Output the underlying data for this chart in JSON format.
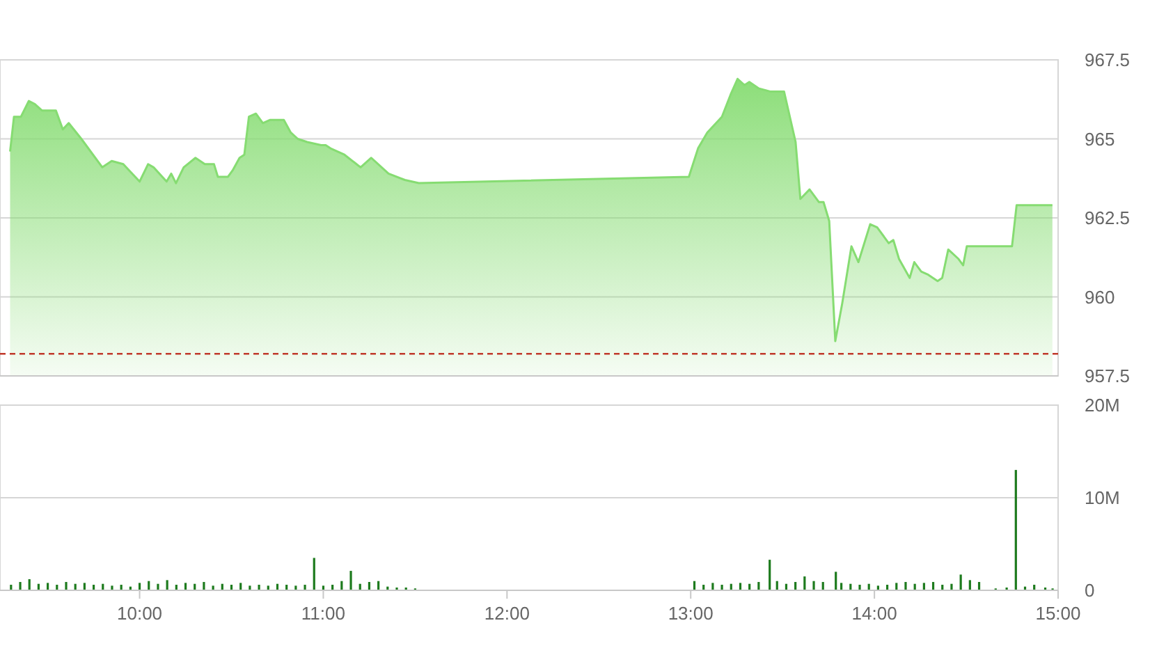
{
  "chart_data": [
    {
      "type": "area",
      "tick_labels": "y",
      "grid": "y",
      "color": "#86dc72",
      "xlim": [
        9.24,
        15.0
      ],
      "ylim": [
        957.5,
        967.5
      ],
      "yticks": [
        957.5,
        960,
        962.5,
        965,
        967.5
      ],
      "x": [
        9.295,
        9.316,
        9.354,
        9.397,
        9.43,
        9.468,
        9.544,
        9.582,
        9.614,
        9.683,
        9.797,
        9.848,
        9.911,
        10.0,
        10.046,
        10.076,
        10.147,
        10.172,
        10.198,
        10.24,
        10.304,
        10.355,
        10.405,
        10.426,
        10.481,
        10.506,
        10.544,
        10.57,
        10.595,
        10.633,
        10.671,
        10.709,
        10.785,
        10.823,
        10.861,
        10.912,
        10.988,
        11.013,
        11.039,
        11.115,
        11.203,
        11.261,
        11.355,
        11.444,
        11.52,
        12.99,
        13.04,
        13.09,
        13.17,
        13.217,
        13.255,
        13.293,
        13.319,
        13.369,
        13.432,
        13.508,
        13.571,
        13.597,
        13.647,
        13.698,
        13.723,
        13.754,
        13.787,
        13.825,
        13.875,
        13.913,
        13.977,
        14.015,
        14.078,
        14.103,
        14.134,
        14.192,
        14.217,
        14.255,
        14.293,
        14.344,
        14.369,
        14.402,
        14.458,
        14.483,
        14.503,
        14.749,
        14.774,
        14.969
      ],
      "values": [
        964.6,
        965.7,
        965.7,
        966.2,
        966.1,
        965.9,
        965.9,
        965.3,
        965.5,
        965.0,
        964.1,
        964.3,
        964.2,
        963.65,
        964.2,
        964.1,
        963.65,
        963.9,
        963.6,
        964.1,
        964.4,
        964.2,
        964.2,
        963.8,
        963.8,
        964.0,
        964.4,
        964.5,
        965.7,
        965.8,
        965.5,
        965.6,
        965.6,
        965.2,
        965.0,
        964.9,
        964.8,
        964.8,
        964.7,
        964.5,
        964.1,
        964.4,
        963.9,
        963.7,
        963.6,
        963.8,
        964.7,
        965.2,
        965.7,
        966.4,
        966.9,
        966.7,
        966.8,
        966.6,
        966.5,
        966.5,
        964.9,
        963.1,
        963.4,
        963.0,
        963.0,
        962.4,
        958.6,
        959.8,
        961.6,
        961.1,
        962.3,
        962.2,
        961.7,
        961.8,
        961.2,
        960.6,
        961.1,
        960.8,
        960.7,
        960.5,
        960.6,
        961.5,
        961.2,
        961.0,
        961.6,
        961.6,
        962.9,
        962.9
      ],
      "ref_lines": [
        {
          "axis": "y",
          "value": 958.2,
          "color": "#c0392b",
          "line_style": "dashed"
        }
      ]
    },
    {
      "type": "bar",
      "grid": "y",
      "color": "#1e7b1e",
      "xlim": [
        9.24,
        15.0
      ],
      "xticks": [
        {
          "value": 10,
          "label": "10:00"
        },
        {
          "value": 11,
          "label": "11:00"
        },
        {
          "value": 12,
          "label": "12:00"
        },
        {
          "value": 13,
          "label": "13:00"
        },
        {
          "value": 14,
          "label": "14:00"
        },
        {
          "value": 15,
          "label": "15:00"
        }
      ],
      "ylim": [
        0,
        20
      ],
      "yticks": [
        0,
        {
          "value": 10,
          "label": "10M"
        },
        {
          "value": 20,
          "label": "20M"
        }
      ],
      "x": [
        9.3,
        9.35,
        9.4,
        9.45,
        9.5,
        9.55,
        9.6,
        9.65,
        9.7,
        9.75,
        9.8,
        9.85,
        9.9,
        9.95,
        10.0,
        10.05,
        10.1,
        10.15,
        10.2,
        10.25,
        10.3,
        10.35,
        10.4,
        10.45,
        10.5,
        10.55,
        10.6,
        10.65,
        10.7,
        10.75,
        10.8,
        10.85,
        10.9,
        10.95,
        11.0,
        11.05,
        11.1,
        11.15,
        11.2,
        11.25,
        11.3,
        11.35,
        11.4,
        11.45,
        11.5,
        13.02,
        13.07,
        13.12,
        13.17,
        13.22,
        13.27,
        13.32,
        13.37,
        13.43,
        13.47,
        13.52,
        13.57,
        13.62,
        13.67,
        13.72,
        13.79,
        13.82,
        13.87,
        13.92,
        13.97,
        14.02,
        14.07,
        14.12,
        14.17,
        14.22,
        14.27,
        14.32,
        14.37,
        14.42,
        14.47,
        14.52,
        14.57,
        14.66,
        14.72,
        14.77,
        14.82,
        14.87,
        14.93,
        14.97
      ],
      "values": [
        0.6,
        0.9,
        1.2,
        0.7,
        0.8,
        0.6,
        0.9,
        0.7,
        0.8,
        0.6,
        0.7,
        0.5,
        0.6,
        0.4,
        0.8,
        1.0,
        0.7,
        1.1,
        0.6,
        0.8,
        0.7,
        0.9,
        0.5,
        0.7,
        0.6,
        0.8,
        0.5,
        0.6,
        0.5,
        0.7,
        0.6,
        0.5,
        0.6,
        3.5,
        0.5,
        0.6,
        1.0,
        2.1,
        0.7,
        0.9,
        1.0,
        0.4,
        0.3,
        0.3,
        0.2,
        1.0,
        0.6,
        0.8,
        0.6,
        0.7,
        0.8,
        0.7,
        0.9,
        3.3,
        1.0,
        0.7,
        0.9,
        1.5,
        1.0,
        0.9,
        2.0,
        0.8,
        0.7,
        0.6,
        0.7,
        0.5,
        0.6,
        0.8,
        0.9,
        0.7,
        0.8,
        0.9,
        0.6,
        0.7,
        1.7,
        1.1,
        0.9,
        0.2,
        0.3,
        13.0,
        0.4,
        0.6,
        0.3,
        0.2
      ]
    }
  ]
}
